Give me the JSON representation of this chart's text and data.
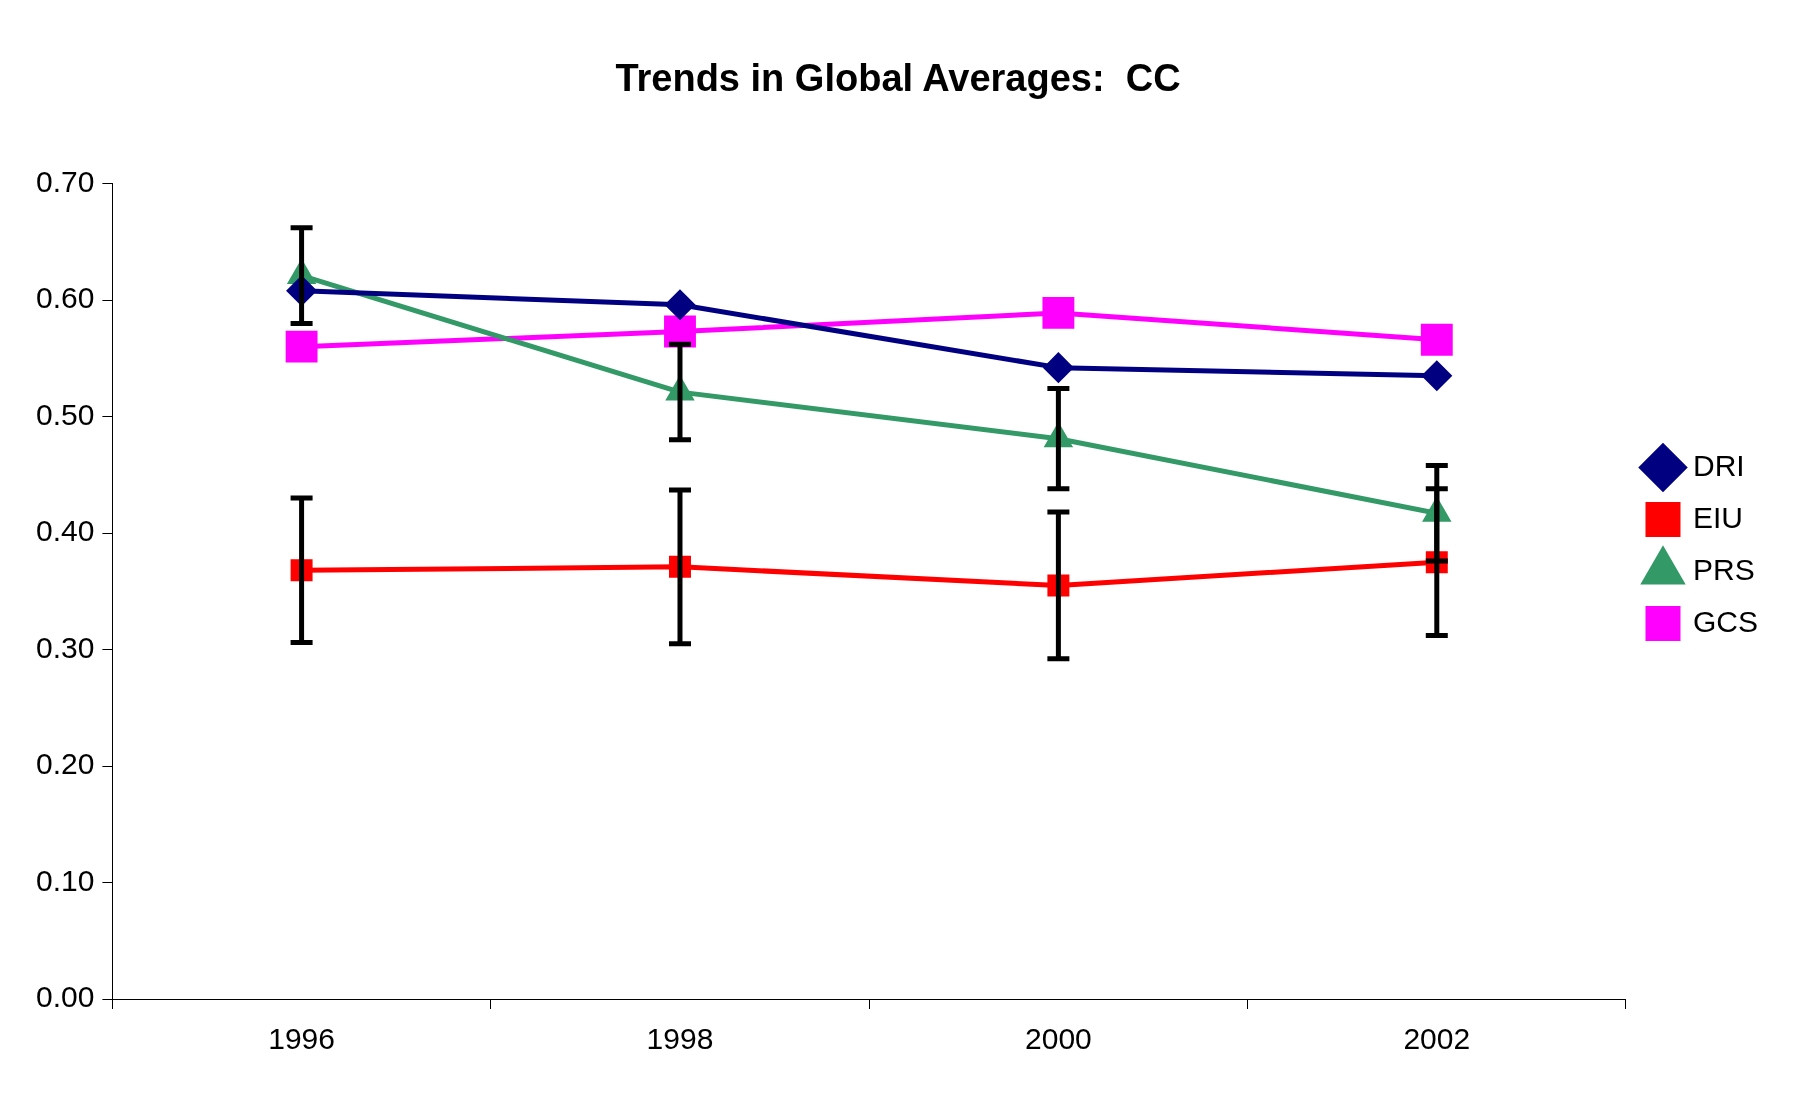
{
  "chart_data": {
    "type": "line",
    "title": "Trends in Global Averages:  CC",
    "categories": [
      "1996",
      "1998",
      "2000",
      "2002"
    ],
    "series": [
      {
        "name": "DRI",
        "color": "#000080",
        "marker": "diamond",
        "values": [
          0.608,
          0.596,
          0.542,
          0.535
        ]
      },
      {
        "name": "EIU",
        "color": "#ff0000",
        "marker": "square",
        "values": [
          0.368,
          0.371,
          0.355,
          0.375
        ],
        "errors": [
          0.062,
          0.066,
          0.063,
          0.063
        ]
      },
      {
        "name": "PRS",
        "color": "#339966",
        "marker": "triangle",
        "values": [
          0.621,
          0.521,
          0.481,
          0.417
        ],
        "errors": [
          0.041,
          0.041,
          0.043,
          0.041
        ]
      },
      {
        "name": "GCS",
        "color": "#ff00ff",
        "marker": "square",
        "values": [
          0.56,
          0.573,
          0.589,
          0.566
        ]
      }
    ],
    "ylim": [
      0,
      0.7
    ],
    "yticks": [
      {
        "value": 0,
        "label": "0.00"
      },
      {
        "value": 0.1,
        "label": "0.10"
      },
      {
        "value": 0.2,
        "label": "0.20"
      },
      {
        "value": 0.3,
        "label": "0.30"
      },
      {
        "value": 0.4,
        "label": "0.40"
      },
      {
        "value": 0.5,
        "label": "0.50"
      },
      {
        "value": 0.6,
        "label": "0.60"
      },
      {
        "value": 0.7,
        "label": "0.70"
      }
    ],
    "grid": false,
    "legend": "right"
  }
}
